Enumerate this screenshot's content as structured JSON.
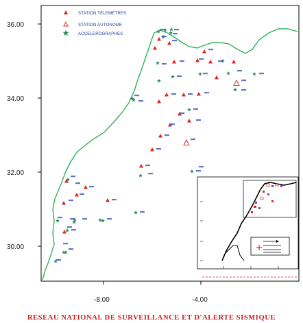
{
  "map": {
    "footer_title": "RESEAU NATIONAL DE SURVEILLANCE ET D'ALERTE SISMIQUE",
    "legend": [
      {
        "symbol": "triangle-filled",
        "label": "STATION TELEMETRES",
        "color": "#e32020"
      },
      {
        "symbol": "triangle-open",
        "label": "STATION AUTONOME",
        "color": "#e32020"
      },
      {
        "symbol": "star",
        "label": "ACCELEROGRAPHES",
        "color": "#2e8b57"
      }
    ],
    "y_ticks": [
      "36.00",
      "34.00",
      "32.00",
      "30.00"
    ],
    "x_ticks": [
      "-8.00",
      "-4.00"
    ],
    "colors": {
      "coast": "#2fb25a",
      "triangle": "#e32020",
      "star": "#2e8b57",
      "frame": "#000000",
      "footer": "#d01c1c"
    },
    "extent": {
      "lon": [
        -10.0,
        -2.0
      ],
      "lat": [
        29.0,
        36.5
      ]
    }
  }
}
